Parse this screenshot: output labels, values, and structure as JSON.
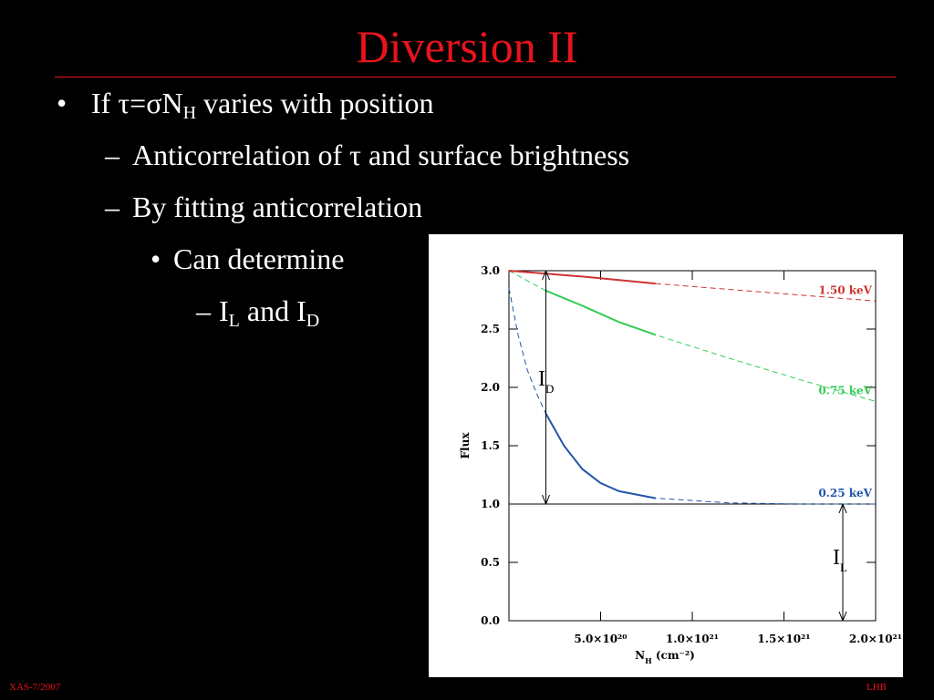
{
  "slide": {
    "title": "Diversion II",
    "bullets": [
      {
        "marker": "•",
        "parts": [
          {
            "text": "If τ=σN"
          },
          {
            "sub": "H"
          },
          {
            "text": " varies with position"
          }
        ],
        "children": [
          {
            "marker": "–",
            "parts": [
              {
                "text": "Anticorrelation of τ and surface brightness"
              }
            ]
          },
          {
            "marker": "–",
            "parts": [
              {
                "text": "By fitting anticorrelation"
              }
            ],
            "children": [
              {
                "marker": "•",
                "parts": [
                  {
                    "text": "Can determine"
                  }
                ],
                "children": [
                  {
                    "marker": "–",
                    "parts": [
                      {
                        "text": "I"
                      },
                      {
                        "sub": "L"
                      },
                      {
                        "text": " and I"
                      },
                      {
                        "sub": "D"
                      }
                    ]
                  }
                ]
              }
            ]
          }
        ]
      }
    ],
    "footer_left": "XAS-7/2007",
    "footer_right": "LHB"
  },
  "chart_data": {
    "type": "line",
    "y_label": "Flux",
    "x_label": [
      {
        "text": "N"
      },
      {
        "sub": "H"
      },
      {
        "text": " (cm⁻²)"
      }
    ],
    "xlim": [
      0,
      2e+21
    ],
    "xticks": [
      {
        "value": 5e+20,
        "label": "5.0×10²⁰"
      },
      {
        "value": 1e+21,
        "label": "1.0×10²¹"
      },
      {
        "value": 1.5e+21,
        "label": "1.5×10²¹"
      },
      {
        "value": 2e+21,
        "label": "2.0×10²¹"
      }
    ],
    "ylim": [
      0,
      3.0
    ],
    "yticks": [
      {
        "value": 0,
        "label": "0.0"
      },
      {
        "value": 0.5,
        "label": "0.5"
      },
      {
        "value": 1.0,
        "label": "1.0"
      },
      {
        "value": 1.5,
        "label": "1.5"
      },
      {
        "value": 2.0,
        "label": "2.0"
      },
      {
        "value": 2.5,
        "label": "2.5"
      },
      {
        "value": 3.0,
        "label": "3.0"
      }
    ],
    "reference_line": 1.0,
    "series": [
      {
        "name": "1.50 keV",
        "color": "#cc3333",
        "dashed": true,
        "x": [
          8e+20,
          1.2e+21,
          1.6e+21,
          2e+21
        ],
        "values": [
          2.89,
          2.84,
          2.79,
          2.74
        ]
      },
      {
        "name": "0.75 keV",
        "color": "#33cc55",
        "dashed": true,
        "x": [
          0,
          2e+20,
          4e+20,
          6e+20,
          8e+20,
          1.2e+21,
          1.6e+21,
          2e+21
        ],
        "values": [
          3.0,
          2.83,
          2.7,
          2.56,
          2.45,
          2.25,
          2.06,
          1.88
        ]
      },
      {
        "name": "0.25 keV",
        "color": "#2255aa",
        "dashed": true,
        "x": [
          0,
          5e+19,
          1e+20,
          1.5e+20,
          2e+20,
          3e+20,
          4e+20,
          5e+20,
          6e+20,
          8e+20,
          1.2e+21,
          1.6e+21,
          2e+21
        ],
        "values": [
          2.85,
          2.45,
          2.15,
          1.95,
          1.78,
          1.5,
          1.3,
          1.18,
          1.11,
          1.05,
          1.01,
          1.0,
          1.0
        ]
      },
      {
        "color": "#cc3333",
        "dashed": false,
        "x": [
          0,
          4e+20,
          8e+20
        ],
        "values": [
          3.0,
          2.95,
          2.89
        ]
      },
      {
        "color": "#33cc55",
        "dashed": false,
        "x": [
          2e+20,
          4e+20,
          6e+20,
          8e+20
        ],
        "values": [
          2.83,
          2.7,
          2.56,
          2.45
        ]
      },
      {
        "color": "#2255aa",
        "dashed": false,
        "x": [
          2e+20,
          3e+20,
          4e+20,
          5e+20,
          6e+20,
          8e+20
        ],
        "values": [
          1.78,
          1.5,
          1.3,
          1.18,
          1.11,
          1.05
        ]
      }
    ],
    "annotations": [
      [
        {
          "text": "I"
        },
        {
          "sub": "D"
        }
      ],
      [
        {
          "text": "I"
        },
        {
          "sub": "L"
        }
      ]
    ]
  }
}
